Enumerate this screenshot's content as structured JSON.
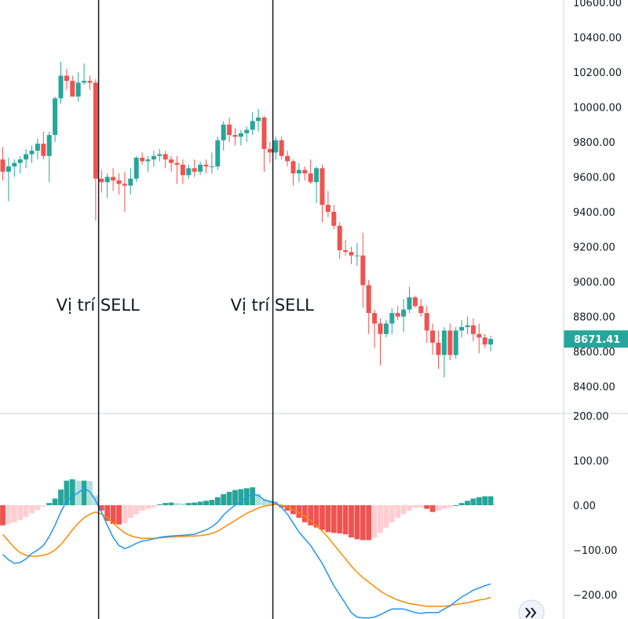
{
  "colors": {
    "up": "#26a69a",
    "down": "#ef5350",
    "hist_up_strong": "#26a69a",
    "hist_up_weak": "#b2dfdb",
    "hist_down_strong": "#ef5350",
    "hist_down_weak": "#ffcdd2",
    "macd_line": "#2196f3",
    "signal_line": "#ff8a00",
    "price_tag": "#26a69a"
  },
  "chart_data": [
    {
      "type": "candlestick",
      "title": "",
      "ylim": [
        8280,
        10660
      ],
      "y_ticks": [
        "10600.00",
        "10400.00",
        "10200.00",
        "10000.00",
        "9800.00",
        "9600.00",
        "9400.00",
        "9200.00",
        "9000.00",
        "8800.00",
        "8600.00",
        "8400.00"
      ],
      "y_tick_values": [
        10600,
        10400,
        10200,
        10000,
        9800,
        9600,
        9400,
        9200,
        9000,
        8800,
        8600,
        8400
      ],
      "last_price": "8671.41",
      "last_price_value": 8671.41,
      "annotations": [
        {
          "text": "Vị trí SELL",
          "bar": 16.5
        },
        {
          "text": "Vị trí SELL",
          "bar": 46.5
        }
      ],
      "candles": [
        [
          9700,
          9770,
          9580,
          9630
        ],
        [
          9630,
          9710,
          9460,
          9660
        ],
        [
          9660,
          9700,
          9600,
          9680
        ],
        [
          9680,
          9720,
          9620,
          9700
        ],
        [
          9700,
          9760,
          9650,
          9730
        ],
        [
          9730,
          9780,
          9680,
          9750
        ],
        [
          9750,
          9820,
          9700,
          9790
        ],
        [
          9790,
          9860,
          9700,
          9720
        ],
        [
          9720,
          9860,
          9570,
          9840
        ],
        [
          9840,
          10060,
          9800,
          10050
        ],
        [
          10050,
          10260,
          10020,
          10180
        ],
        [
          10180,
          10220,
          10100,
          10150
        ],
        [
          10150,
          10180,
          10080,
          10060
        ],
        [
          10060,
          10200,
          10030,
          10140
        ],
        [
          10140,
          10250,
          10130,
          10150
        ],
        [
          10150,
          10180,
          10100,
          10140
        ],
        [
          10140,
          10160,
          9350,
          9590
        ],
        [
          9590,
          9640,
          9510,
          9570
        ],
        [
          9570,
          9620,
          9480,
          9600
        ],
        [
          9600,
          9650,
          9520,
          9580
        ],
        [
          9580,
          9620,
          9500,
          9560
        ],
        [
          9560,
          9630,
          9400,
          9550
        ],
        [
          9550,
          9650,
          9500,
          9590
        ],
        [
          9590,
          9720,
          9570,
          9710
        ],
        [
          9710,
          9740,
          9670,
          9690
        ],
        [
          9690,
          9720,
          9630,
          9700
        ],
        [
          9700,
          9750,
          9660,
          9720
        ],
        [
          9720,
          9760,
          9690,
          9730
        ],
        [
          9730,
          9750,
          9650,
          9700
        ],
        [
          9700,
          9720,
          9630,
          9680
        ],
        [
          9680,
          9720,
          9560,
          9670
        ],
        [
          9670,
          9700,
          9560,
          9610
        ],
        [
          9610,
          9670,
          9590,
          9650
        ],
        [
          9650,
          9700,
          9600,
          9630
        ],
        [
          9630,
          9690,
          9610,
          9670
        ],
        [
          9670,
          9700,
          9620,
          9660
        ],
        [
          9660,
          9740,
          9620,
          9660
        ],
        [
          9660,
          9830,
          9640,
          9810
        ],
        [
          9810,
          9920,
          9750,
          9900
        ],
        [
          9900,
          9940,
          9800,
          9840
        ],
        [
          9840,
          9880,
          9780,
          9830
        ],
        [
          9830,
          9870,
          9780,
          9850
        ],
        [
          9850,
          9890,
          9800,
          9870
        ],
        [
          9870,
          9970,
          9840,
          9920
        ],
        [
          9920,
          9990,
          9860,
          9940
        ],
        [
          9940,
          9950,
          9630,
          9760
        ],
        [
          9760,
          9800,
          9680,
          9740
        ],
        [
          9740,
          9830,
          9700,
          9810
        ],
        [
          9810,
          9830,
          9700,
          9720
        ],
        [
          9720,
          9750,
          9660,
          9690
        ],
        [
          9690,
          9700,
          9550,
          9620
        ],
        [
          9620,
          9680,
          9570,
          9640
        ],
        [
          9640,
          9660,
          9580,
          9620
        ],
        [
          9620,
          9700,
          9560,
          9570
        ],
        [
          9570,
          9660,
          9450,
          9650
        ],
        [
          9650,
          9670,
          9340,
          9440
        ],
        [
          9440,
          9520,
          9370,
          9400
        ],
        [
          9400,
          9440,
          9300,
          9320
        ],
        [
          9320,
          9340,
          9130,
          9180
        ],
        [
          9180,
          9240,
          9150,
          9170
        ],
        [
          9170,
          9200,
          9100,
          9150
        ],
        [
          9150,
          9220,
          9090,
          9150
        ],
        [
          9150,
          9280,
          8850,
          8980
        ],
        [
          8980,
          9010,
          8700,
          8820
        ],
        [
          8820,
          8840,
          8620,
          8760
        ],
        [
          8760,
          8790,
          8520,
          8700
        ],
        [
          8700,
          8780,
          8680,
          8760
        ],
        [
          8760,
          8850,
          8700,
          8820
        ],
        [
          8820,
          8860,
          8780,
          8800
        ],
        [
          8800,
          8900,
          8710,
          8840
        ],
        [
          8840,
          8970,
          8820,
          8910
        ],
        [
          8910,
          8920,
          8850,
          8860
        ],
        [
          8860,
          8900,
          8800,
          8820
        ],
        [
          8820,
          8860,
          8650,
          8720
        ],
        [
          8720,
          8760,
          8580,
          8650
        ],
        [
          8650,
          8720,
          8500,
          8580
        ],
        [
          8580,
          8740,
          8450,
          8720
        ],
        [
          8720,
          8760,
          8550,
          8580
        ],
        [
          8580,
          8740,
          8560,
          8720
        ],
        [
          8720,
          8780,
          8680,
          8740
        ],
        [
          8740,
          8800,
          8700,
          8750
        ],
        [
          8750,
          8790,
          8660,
          8700
        ],
        [
          8700,
          8760,
          8590,
          8680
        ],
        [
          8680,
          8700,
          8620,
          8640
        ],
        [
          8640,
          8690,
          8600,
          8671.41
        ]
      ]
    },
    {
      "type": "macd",
      "title": "",
      "ylim": [
        -250,
        245
      ],
      "y_ticks": [
        "200.00",
        "100.00",
        "0.00",
        "−100.00",
        "−200.00"
      ],
      "y_tick_values": [
        200,
        100,
        0,
        -100,
        -200
      ],
      "histogram": [
        -45,
        -42,
        -38,
        -33,
        -26,
        -18,
        -11,
        -3,
        5,
        15,
        35,
        55,
        58,
        55,
        55,
        54,
        22,
        -12,
        -35,
        -42,
        -43,
        -40,
        -28,
        -20,
        -12,
        -8,
        -5,
        2,
        5,
        6,
        5,
        4,
        5,
        6,
        8,
        10,
        12,
        18,
        25,
        30,
        34,
        36,
        38,
        40,
        25,
        14,
        11,
        9,
        -5,
        -12,
        -20,
        -28,
        -38,
        -45,
        -50,
        -55,
        -60,
        -62,
        -63,
        -65,
        -72,
        -76,
        -78,
        -78,
        -72,
        -62,
        -50,
        -38,
        -28,
        -20,
        -12,
        -6,
        -5,
        -8,
        -15,
        -12,
        -8,
        -5,
        0,
        5,
        10,
        15,
        18,
        20,
        20
      ],
      "macd": [
        -110,
        -122,
        -130,
        -128,
        -120,
        -108,
        -100,
        -90,
        -70,
        -45,
        -15,
        10,
        20,
        28,
        38,
        30,
        10,
        -15,
        -45,
        -72,
        -90,
        -97,
        -92,
        -85,
        -80,
        -78,
        -75,
        -72,
        -70,
        -69,
        -68,
        -67,
        -66,
        -65,
        -60,
        -55,
        -48,
        -38,
        -22,
        -10,
        0,
        8,
        18,
        25,
        22,
        12,
        8,
        5,
        -5,
        -20,
        -40,
        -60,
        -75,
        -90,
        -110,
        -130,
        -155,
        -180,
        -200,
        -220,
        -240,
        -250,
        -252,
        -252,
        -250,
        -245,
        -238,
        -232,
        -232,
        -232,
        -236,
        -240,
        -242,
        -240,
        -240,
        -240,
        -232,
        -225,
        -215,
        -205,
        -198,
        -190,
        -185,
        -180,
        -176
      ],
      "signal": [
        -65,
        -80,
        -95,
        -106,
        -112,
        -114,
        -114,
        -112,
        -108,
        -100,
        -88,
        -72,
        -55,
        -40,
        -28,
        -20,
        -15,
        -20,
        -28,
        -40,
        -52,
        -62,
        -68,
        -72,
        -74,
        -74,
        -74,
        -73,
        -72,
        -71,
        -70,
        -70,
        -69,
        -69,
        -68,
        -66,
        -63,
        -58,
        -50,
        -42,
        -34,
        -26,
        -18,
        -12,
        -6,
        -2,
        0,
        2,
        0,
        -4,
        -10,
        -16,
        -24,
        -34,
        -46,
        -58,
        -72,
        -88,
        -104,
        -120,
        -136,
        -150,
        -162,
        -172,
        -182,
        -192,
        -200,
        -206,
        -212,
        -216,
        -220,
        -222,
        -224,
        -226,
        -226,
        -226,
        -226,
        -224,
        -222,
        -220,
        -218,
        -215,
        -212,
        -210,
        -206
      ]
    }
  ]
}
